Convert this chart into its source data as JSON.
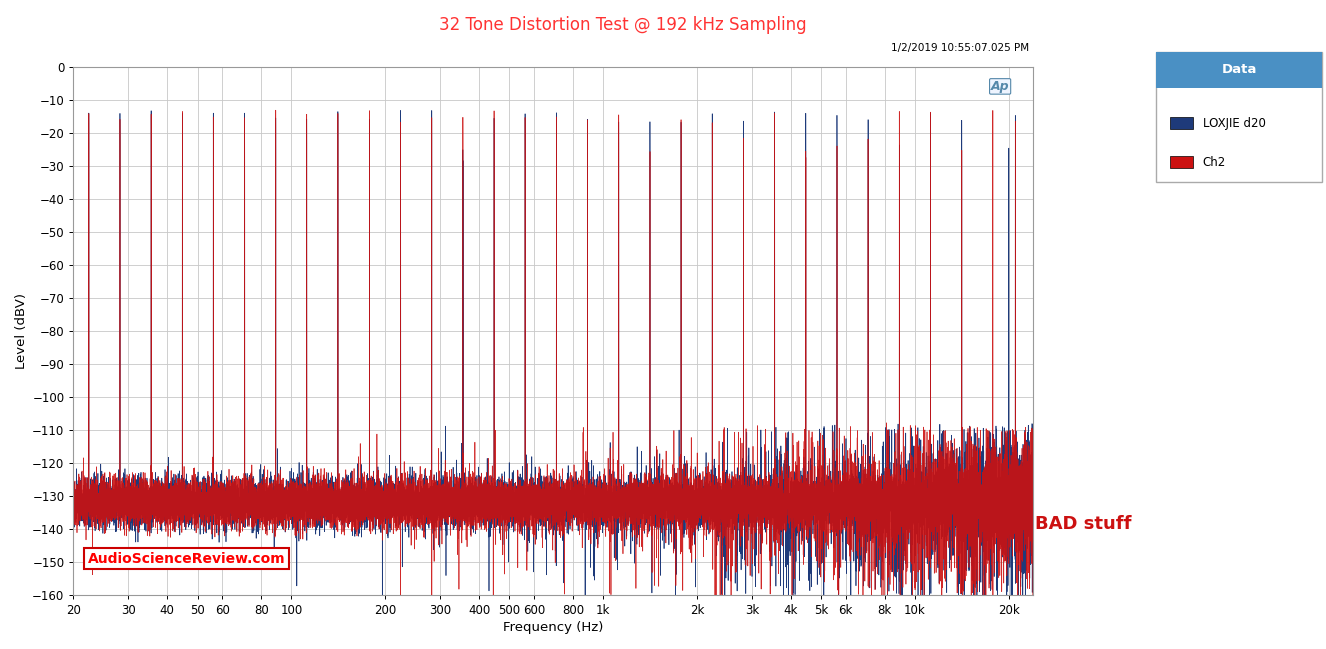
{
  "title": "32 Tone Distortion Test @ 192 kHz Sampling",
  "title_color": "#FF3333",
  "datetime_text": "1/2/2019 10:55:07.025 PM",
  "ylabel": "Level (dBV)",
  "xlabel": "Frequency (Hz)",
  "xlim": [
    20,
    24000
  ],
  "ylim": [
    -160,
    0
  ],
  "yticks": [
    0,
    -10,
    -20,
    -30,
    -40,
    -50,
    -60,
    -70,
    -80,
    -90,
    -100,
    -110,
    -120,
    -130,
    -140,
    -150,
    -160
  ],
  "xtick_positions": [
    20,
    30,
    40,
    50,
    60,
    80,
    100,
    200,
    300,
    400,
    500,
    600,
    800,
    1000,
    2000,
    3000,
    4000,
    5000,
    6000,
    8000,
    10000,
    20000
  ],
  "xtick_labels": [
    "20",
    "30",
    "40",
    "50",
    "60",
    "80",
    "100",
    "200",
    "300",
    "400",
    "500",
    "600",
    "800",
    "1k",
    "2k",
    "3k",
    "4k",
    "5k",
    "6k",
    "8k",
    "10k",
    "20k"
  ],
  "background_color": "#FFFFFF",
  "plot_bg_color": "#FFFFFF",
  "grid_color": "#C8C8C8",
  "ch1_color": "#1E3A7A",
  "ch2_color": "#CC1111",
  "ch1_label": "LOXJIE d20",
  "ch2_label": "Ch2",
  "legend_title": "Data",
  "legend_header_bg": "#4A90C4",
  "bad_stuff_text": "BAD stuff",
  "bad_stuff_color": "#CC1111",
  "watermark_text": "AudioScienceReview.com",
  "watermark_color": "#FF0000",
  "noise_floor": -130,
  "tone_peak_level": -15,
  "num_freqs": 20000,
  "seed_ch1": 77,
  "seed_ch2": 42
}
